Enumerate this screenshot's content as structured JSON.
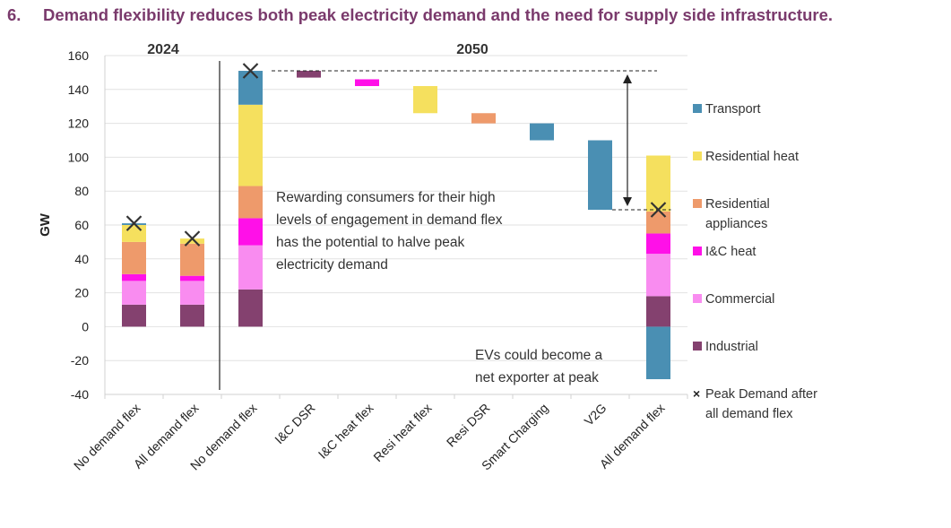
{
  "title": {
    "number": "6.",
    "text": "Demand flexibility reduces both peak electricity demand and the need for supply side infrastructure."
  },
  "colors": {
    "transport": "#4a8fb3",
    "residential_heat": "#f5e05e",
    "residential_appliances": "#ee9a6b",
    "ic_heat": "#ff10e8",
    "commercial": "#f98cf0",
    "industrial": "#84416f",
    "title": "#7a3a6c"
  },
  "chart_data": {
    "type": "bar",
    "ylabel": "GW",
    "ylim": [
      -40,
      160
    ],
    "yticks": [
      160,
      140,
      120,
      100,
      80,
      60,
      40,
      20,
      0,
      -20,
      -40
    ],
    "groups": [
      {
        "label": "2024",
        "categories": [
          "No demand flex",
          "All demand flex"
        ]
      },
      {
        "label": "2050",
        "categories": [
          "No demand flex",
          "I&C DSR",
          "I&C heat flex",
          "Resi heat flex",
          "Resi DSR",
          "Smart Charging",
          "V2G",
          "All demand flex"
        ]
      }
    ],
    "categories": [
      "No demand flex",
      "All demand flex",
      "No demand flex",
      "I&C DSR",
      "I&C heat flex",
      "Resi heat flex",
      "Resi DSR",
      "Smart Charging",
      "V2G",
      "All demand flex"
    ],
    "stacked_bars": [
      {
        "category_index": 0,
        "segments": [
          {
            "series": "industrial",
            "from": 0,
            "to": 13
          },
          {
            "series": "commercial",
            "from": 13,
            "to": 27
          },
          {
            "series": "ic_heat",
            "from": 27,
            "to": 31
          },
          {
            "series": "residential_appliances",
            "from": 31,
            "to": 50
          },
          {
            "series": "residential_heat",
            "from": 50,
            "to": 60
          },
          {
            "series": "transport",
            "from": 60,
            "to": 61
          }
        ]
      },
      {
        "category_index": 1,
        "segments": [
          {
            "series": "industrial",
            "from": 0,
            "to": 13
          },
          {
            "series": "commercial",
            "from": 13,
            "to": 27
          },
          {
            "series": "ic_heat",
            "from": 27,
            "to": 30
          },
          {
            "series": "residential_appliances",
            "from": 30,
            "to": 49
          },
          {
            "series": "residential_heat",
            "from": 49,
            "to": 52
          }
        ]
      },
      {
        "category_index": 2,
        "segments": [
          {
            "series": "industrial",
            "from": 0,
            "to": 22
          },
          {
            "series": "commercial",
            "from": 22,
            "to": 48
          },
          {
            "series": "ic_heat",
            "from": 48,
            "to": 64
          },
          {
            "series": "residential_appliances",
            "from": 64,
            "to": 83
          },
          {
            "series": "residential_heat",
            "from": 83,
            "to": 131
          },
          {
            "series": "transport",
            "from": 131,
            "to": 151
          }
        ]
      },
      {
        "category_index": 9,
        "segments": [
          {
            "series": "transport",
            "from": -31,
            "to": 0
          },
          {
            "series": "industrial",
            "from": 0,
            "to": 18
          },
          {
            "series": "commercial",
            "from": 18,
            "to": 43
          },
          {
            "series": "ic_heat",
            "from": 43,
            "to": 55
          },
          {
            "series": "residential_appliances",
            "from": 55,
            "to": 68
          },
          {
            "series": "residential_heat",
            "from": 68,
            "to": 101
          }
        ]
      }
    ],
    "waterfall_steps": [
      {
        "category_index": 3,
        "series": "industrial",
        "from": 147,
        "to": 151
      },
      {
        "category_index": 4,
        "series": "ic_heat",
        "from": 142,
        "to": 146
      },
      {
        "category_index": 5,
        "series": "residential_heat",
        "from": 126,
        "to": 142
      },
      {
        "category_index": 6,
        "series": "residential_appliances",
        "from": 120,
        "to": 126
      },
      {
        "category_index": 7,
        "series": "transport",
        "from": 110,
        "to": 120
      },
      {
        "category_index": 8,
        "series": "transport",
        "from": 69,
        "to": 110
      }
    ],
    "peak_markers": [
      {
        "category_index": 0,
        "value": 61
      },
      {
        "category_index": 1,
        "value": 52
      },
      {
        "category_index": 2,
        "value": 151
      },
      {
        "category_index": 9,
        "value": 69
      }
    ],
    "reference_lines": [
      {
        "from_category": 2,
        "to_category": 9,
        "value": 151
      },
      {
        "from_category": 8,
        "to_category": 9,
        "value": 69
      }
    ],
    "arrow": {
      "category_index": 9,
      "from": 151,
      "to": 69
    },
    "annotations": [
      {
        "lines": [
          "Rewarding consumers for their high",
          "levels of engagement in demand flex",
          "has the potential to halve peak",
          "electricity demand"
        ]
      },
      {
        "lines": [
          "EVs could become a",
          "net exporter at peak"
        ]
      }
    ],
    "legend": {
      "placement": "right",
      "entries": [
        {
          "series": "transport",
          "lines": [
            "Transport"
          ]
        },
        {
          "series": "residential_heat",
          "lines": [
            "Residential heat"
          ]
        },
        {
          "series": "residential_appliances",
          "lines": [
            "Residential",
            "appliances"
          ]
        },
        {
          "series": "ic_heat",
          "lines": [
            "I&C heat"
          ]
        },
        {
          "series": "commercial",
          "lines": [
            "Commercial"
          ]
        },
        {
          "series": "industrial",
          "lines": [
            "Industrial"
          ]
        },
        {
          "series": "peak",
          "marker": "×",
          "lines": [
            "Peak Demand after",
            "all demand flex"
          ]
        }
      ]
    },
    "grid": true
  }
}
